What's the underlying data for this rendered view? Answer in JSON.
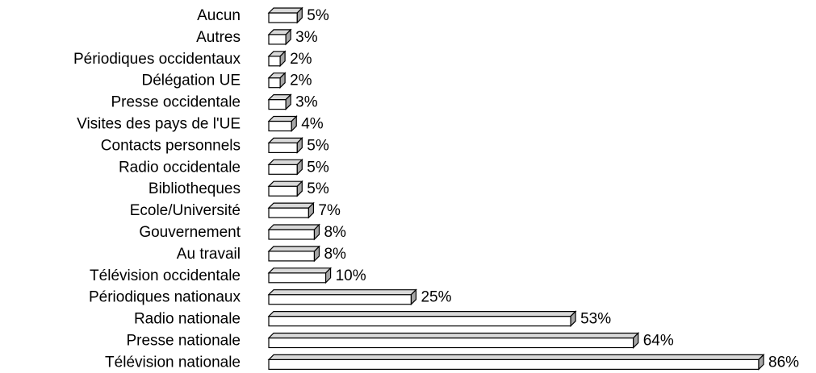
{
  "chart_data": {
    "type": "bar",
    "orientation": "horizontal",
    "categories": [
      "Aucun",
      "Autres",
      "Périodiques occidentaux",
      "Délégation UE",
      "Presse occidentale",
      "Visites des pays de l'UE",
      "Contacts personnels",
      "Radio occidentale",
      "Bibliotheques",
      "Ecole/Université",
      "Gouvernement",
      "Au travail",
      "Télévision occidentale",
      "Périodiques nationaux",
      "Radio nationale",
      "Presse nationale",
      "Télévision nationale"
    ],
    "values": [
      5,
      3,
      2,
      2,
      3,
      4,
      5,
      5,
      5,
      7,
      8,
      8,
      10,
      25,
      53,
      64,
      86
    ],
    "value_labels": [
      "5%",
      "3%",
      "2%",
      "2%",
      "3%",
      "4%",
      "5%",
      "5%",
      "5%",
      "7%",
      "8%",
      "8%",
      "10%",
      "25%",
      "53%",
      "64%",
      "86%"
    ],
    "color": "#ffffff",
    "top_color": "#d9d9d9",
    "side_color": "#a6a6a6"
  }
}
